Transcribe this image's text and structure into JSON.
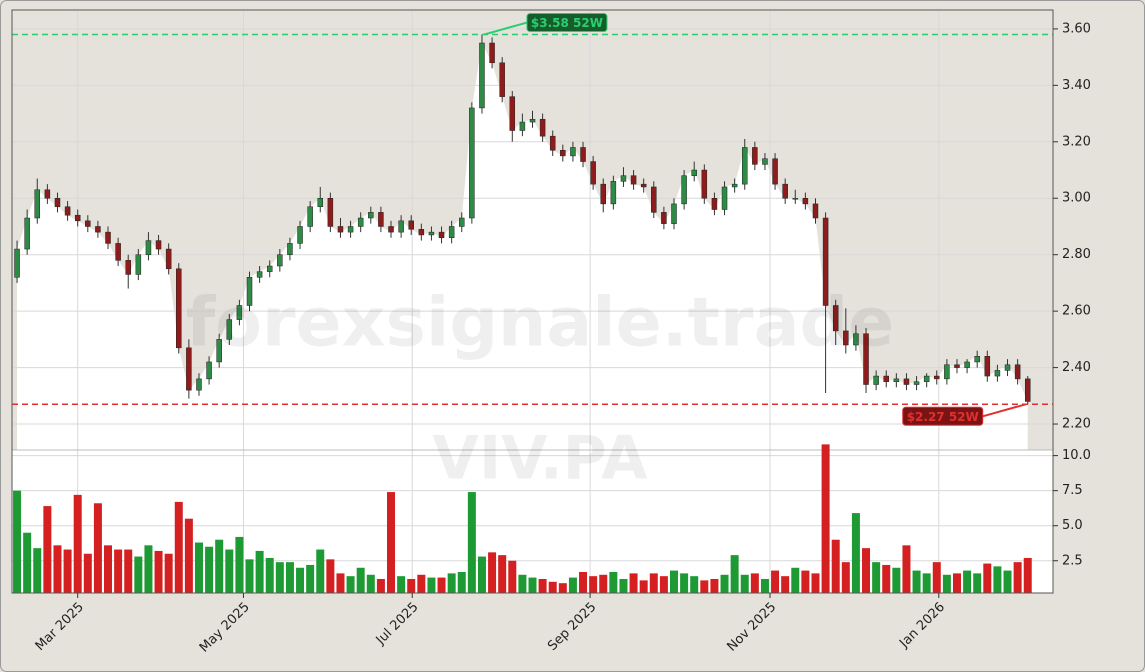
{
  "chart_data": {
    "type": "candlestick",
    "ticker": "VIV.PA",
    "watermark": "forexsignale.trade",
    "up_color": "#1e9a34",
    "down_color": "#d42020",
    "up_body": "#2e8b45",
    "down_body": "#8e1c1c",
    "open": [
      2.72,
      2.82,
      2.93,
      3.03,
      3.0,
      2.97,
      2.94,
      2.92,
      2.9,
      2.88,
      2.84,
      2.78,
      2.73,
      2.8,
      2.85,
      2.82,
      2.75,
      2.47,
      2.32,
      2.36,
      2.42,
      2.5,
      2.57,
      2.62,
      2.72,
      2.74,
      2.76,
      2.8,
      2.84,
      2.9,
      2.97,
      3.0,
      2.9,
      2.88,
      2.9,
      2.93,
      2.95,
      2.9,
      2.88,
      2.92,
      2.89,
      2.87,
      2.88,
      2.86,
      2.9,
      2.93,
      3.32,
      3.55,
      3.48,
      3.36,
      3.24,
      3.27,
      3.28,
      3.22,
      3.17,
      3.15,
      3.18,
      3.13,
      3.05,
      2.98,
      3.06,
      3.08,
      3.05,
      3.04,
      2.95,
      2.91,
      2.98,
      3.08,
      3.1,
      3.0,
      2.96,
      3.04,
      3.05,
      3.18,
      3.12,
      3.14,
      3.05,
      3.0,
      3.0,
      2.98,
      2.93,
      2.62,
      2.53,
      2.48,
      2.52,
      2.34,
      2.37,
      2.35,
      2.36,
      2.34,
      2.35,
      2.37,
      2.36,
      2.41,
      2.4,
      2.42,
      2.44,
      2.37,
      2.39,
      2.41,
      2.36
    ],
    "high": [
      2.85,
      2.96,
      3.07,
      3.05,
      3.02,
      2.99,
      2.96,
      2.94,
      2.92,
      2.9,
      2.86,
      2.8,
      2.82,
      2.88,
      2.87,
      2.84,
      2.77,
      2.5,
      2.38,
      2.44,
      2.52,
      2.59,
      2.64,
      2.74,
      2.76,
      2.78,
      2.82,
      2.86,
      2.92,
      2.99,
      3.04,
      3.02,
      2.93,
      2.92,
      2.95,
      2.97,
      2.97,
      2.92,
      2.94,
      2.94,
      2.91,
      2.9,
      2.9,
      2.92,
      2.95,
      3.34,
      3.58,
      3.57,
      3.5,
      3.38,
      3.3,
      3.31,
      3.3,
      3.24,
      3.19,
      3.2,
      3.2,
      3.15,
      3.07,
      3.08,
      3.11,
      3.1,
      3.07,
      3.06,
      2.97,
      3.0,
      3.1,
      3.13,
      3.12,
      3.02,
      3.06,
      3.07,
      3.21,
      3.2,
      3.16,
      3.16,
      3.07,
      3.03,
      3.02,
      3.0,
      2.95,
      2.64,
      2.61,
      2.55,
      2.54,
      2.39,
      2.39,
      2.38,
      2.38,
      2.37,
      2.38,
      2.39,
      2.43,
      2.43,
      2.43,
      2.46,
      2.46,
      2.41,
      2.43,
      2.43,
      2.37
    ],
    "low": [
      2.7,
      2.8,
      2.91,
      2.98,
      2.95,
      2.92,
      2.9,
      2.88,
      2.86,
      2.82,
      2.76,
      2.68,
      2.71,
      2.78,
      2.8,
      2.73,
      2.45,
      2.29,
      2.3,
      2.34,
      2.4,
      2.48,
      2.55,
      2.6,
      2.7,
      2.72,
      2.74,
      2.78,
      2.82,
      2.88,
      2.95,
      2.88,
      2.86,
      2.86,
      2.88,
      2.91,
      2.88,
      2.86,
      2.86,
      2.87,
      2.85,
      2.85,
      2.84,
      2.84,
      2.88,
      2.91,
      3.3,
      3.46,
      3.34,
      3.2,
      3.22,
      3.25,
      3.2,
      3.15,
      3.13,
      3.13,
      3.11,
      3.03,
      2.95,
      2.96,
      3.04,
      3.03,
      3.02,
      2.93,
      2.89,
      2.89,
      2.96,
      3.06,
      2.98,
      2.94,
      2.94,
      3.02,
      3.03,
      3.1,
      3.1,
      3.03,
      2.98,
      2.98,
      2.96,
      2.91,
      2.31,
      2.48,
      2.45,
      2.46,
      2.31,
      2.32,
      2.33,
      2.33,
      2.32,
      2.32,
      2.33,
      2.34,
      2.34,
      2.38,
      2.38,
      2.4,
      2.35,
      2.35,
      2.37,
      2.34,
      2.27
    ],
    "close": [
      2.82,
      2.93,
      3.03,
      3.0,
      2.97,
      2.94,
      2.92,
      2.9,
      2.88,
      2.84,
      2.78,
      2.73,
      2.8,
      2.85,
      2.82,
      2.75,
      2.47,
      2.32,
      2.36,
      2.42,
      2.5,
      2.57,
      2.62,
      2.72,
      2.74,
      2.76,
      2.8,
      2.84,
      2.9,
      2.97,
      3.0,
      2.9,
      2.88,
      2.9,
      2.93,
      2.95,
      2.9,
      2.88,
      2.92,
      2.89,
      2.87,
      2.88,
      2.86,
      2.9,
      2.93,
      3.32,
      3.55,
      3.48,
      3.36,
      3.24,
      3.27,
      3.28,
      3.22,
      3.17,
      3.15,
      3.18,
      3.13,
      3.05,
      2.98,
      3.06,
      3.08,
      3.05,
      3.04,
      2.95,
      2.91,
      2.98,
      3.08,
      3.1,
      3.0,
      2.96,
      3.04,
      3.05,
      3.18,
      3.12,
      3.14,
      3.05,
      3.0,
      3.0,
      2.98,
      2.93,
      2.62,
      2.53,
      2.48,
      2.52,
      2.34,
      2.37,
      2.35,
      2.36,
      2.34,
      2.35,
      2.37,
      2.36,
      2.41,
      2.4,
      2.42,
      2.44,
      2.37,
      2.39,
      2.41,
      2.36,
      2.28
    ],
    "volume": [
      7.5,
      4.5,
      3.4,
      6.4,
      3.6,
      3.3,
      7.2,
      3.0,
      6.6,
      3.6,
      3.3,
      3.3,
      2.8,
      3.6,
      3.2,
      3.0,
      6.7,
      5.5,
      3.8,
      3.5,
      4.0,
      3.3,
      4.2,
      2.6,
      3.2,
      2.7,
      2.4,
      2.4,
      2.0,
      2.2,
      3.3,
      2.6,
      1.6,
      1.4,
      2.0,
      1.5,
      1.2,
      7.4,
      1.4,
      1.2,
      1.5,
      1.3,
      1.3,
      1.6,
      1.7,
      7.4,
      2.8,
      3.1,
      2.9,
      2.5,
      1.5,
      1.3,
      1.2,
      1.0,
      0.9,
      1.3,
      1.7,
      1.4,
      1.5,
      1.7,
      1.2,
      1.6,
      1.1,
      1.6,
      1.4,
      1.8,
      1.6,
      1.4,
      1.1,
      1.2,
      1.5,
      2.9,
      1.5,
      1.6,
      1.2,
      1.8,
      1.4,
      2.0,
      1.8,
      1.6,
      10.8,
      4.0,
      2.4,
      5.9,
      3.4,
      2.4,
      2.2,
      2.0,
      3.6,
      1.8,
      1.6,
      2.4,
      1.5,
      1.6,
      1.8,
      1.6,
      2.3,
      2.1,
      1.8,
      2.4,
      2.7
    ],
    "xlim": [
      -0.5,
      102.5
    ],
    "xticks": [
      {
        "value": 6,
        "label": "Mar 2025"
      },
      {
        "value": 22.4,
        "label": "May 2025"
      },
      {
        "value": 39.1,
        "label": "Jul 2025"
      },
      {
        "value": 56.7,
        "label": "Sep 2025"
      },
      {
        "value": 74.5,
        "label": "Nov 2025"
      },
      {
        "value": 91.2,
        "label": "Jan 2026"
      }
    ],
    "ylim": [
      2.108,
      3.667
    ],
    "yticks": [
      {
        "value": 2.2,
        "label": "2.20"
      },
      {
        "value": 2.4,
        "label": "2.40"
      },
      {
        "value": 2.6,
        "label": "2.60"
      },
      {
        "value": 2.8,
        "label": "2.80"
      },
      {
        "value": 3.0,
        "label": "3.00"
      },
      {
        "value": 3.2,
        "label": "3.20"
      },
      {
        "value": 3.4,
        "label": "3.40"
      },
      {
        "value": 3.6,
        "label": "3.60"
      }
    ],
    "volume_lim": [
      0.2,
      10.4
    ],
    "volume_ticks": [
      {
        "value": 2.5,
        "label": "2.5"
      },
      {
        "value": 5,
        "label": "5.0"
      },
      {
        "value": 7.5,
        "label": "7.5"
      },
      {
        "value": 10,
        "label": "10.0"
      }
    ],
    "grid": true,
    "annotations": [
      {
        "label": "$3.58 52W",
        "value": 3.58,
        "color": "#2ecc71",
        "index": 46
      },
      {
        "label": "$2.27 52W",
        "value": 2.27,
        "color": "#e03030",
        "index": 100
      }
    ]
  }
}
